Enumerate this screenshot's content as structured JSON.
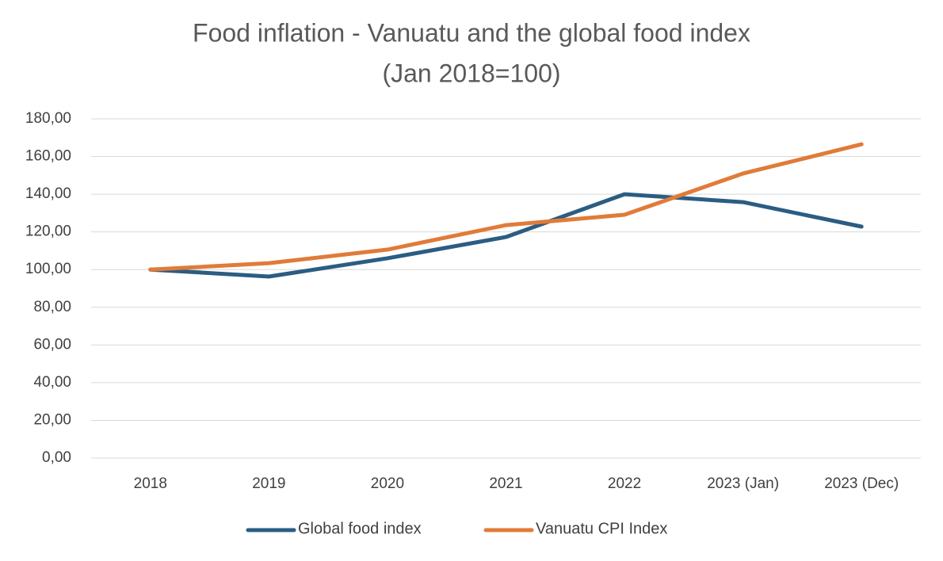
{
  "chart_data": {
    "type": "line",
    "title": "Food inflation  - Vanuatu and the global food index",
    "subtitle": "(Jan 2018=100)",
    "categories": [
      "2018",
      "2019",
      "2020",
      "2021",
      "2022",
      "2023 (Jan)",
      "2023 (Dec)"
    ],
    "series": [
      {
        "name": "Global food index",
        "color": "#2b5d83",
        "values": [
          100,
          96.3,
          106,
          117.3,
          140,
          135.8,
          122.8
        ]
      },
      {
        "name": "Vanuatu CPI Index",
        "color": "#e07b39",
        "values": [
          100,
          103.4,
          110.6,
          123.6,
          129.1,
          151,
          166.5
        ]
      }
    ],
    "ylim": [
      0,
      180
    ],
    "yticks": [
      {
        "value": 0,
        "label": "0,00"
      },
      {
        "value": 20,
        "label": "20,00"
      },
      {
        "value": 40,
        "label": "40,00"
      },
      {
        "value": 60,
        "label": "60,00"
      },
      {
        "value": 80,
        "label": "80,00"
      },
      {
        "value": 100,
        "label": "100,00"
      },
      {
        "value": 120,
        "label": "120,00"
      },
      {
        "value": 140,
        "label": "140,00"
      },
      {
        "value": 160,
        "label": "160,00"
      },
      {
        "value": 180,
        "label": "180,00"
      }
    ],
    "grid": true,
    "legend": "bottom"
  }
}
